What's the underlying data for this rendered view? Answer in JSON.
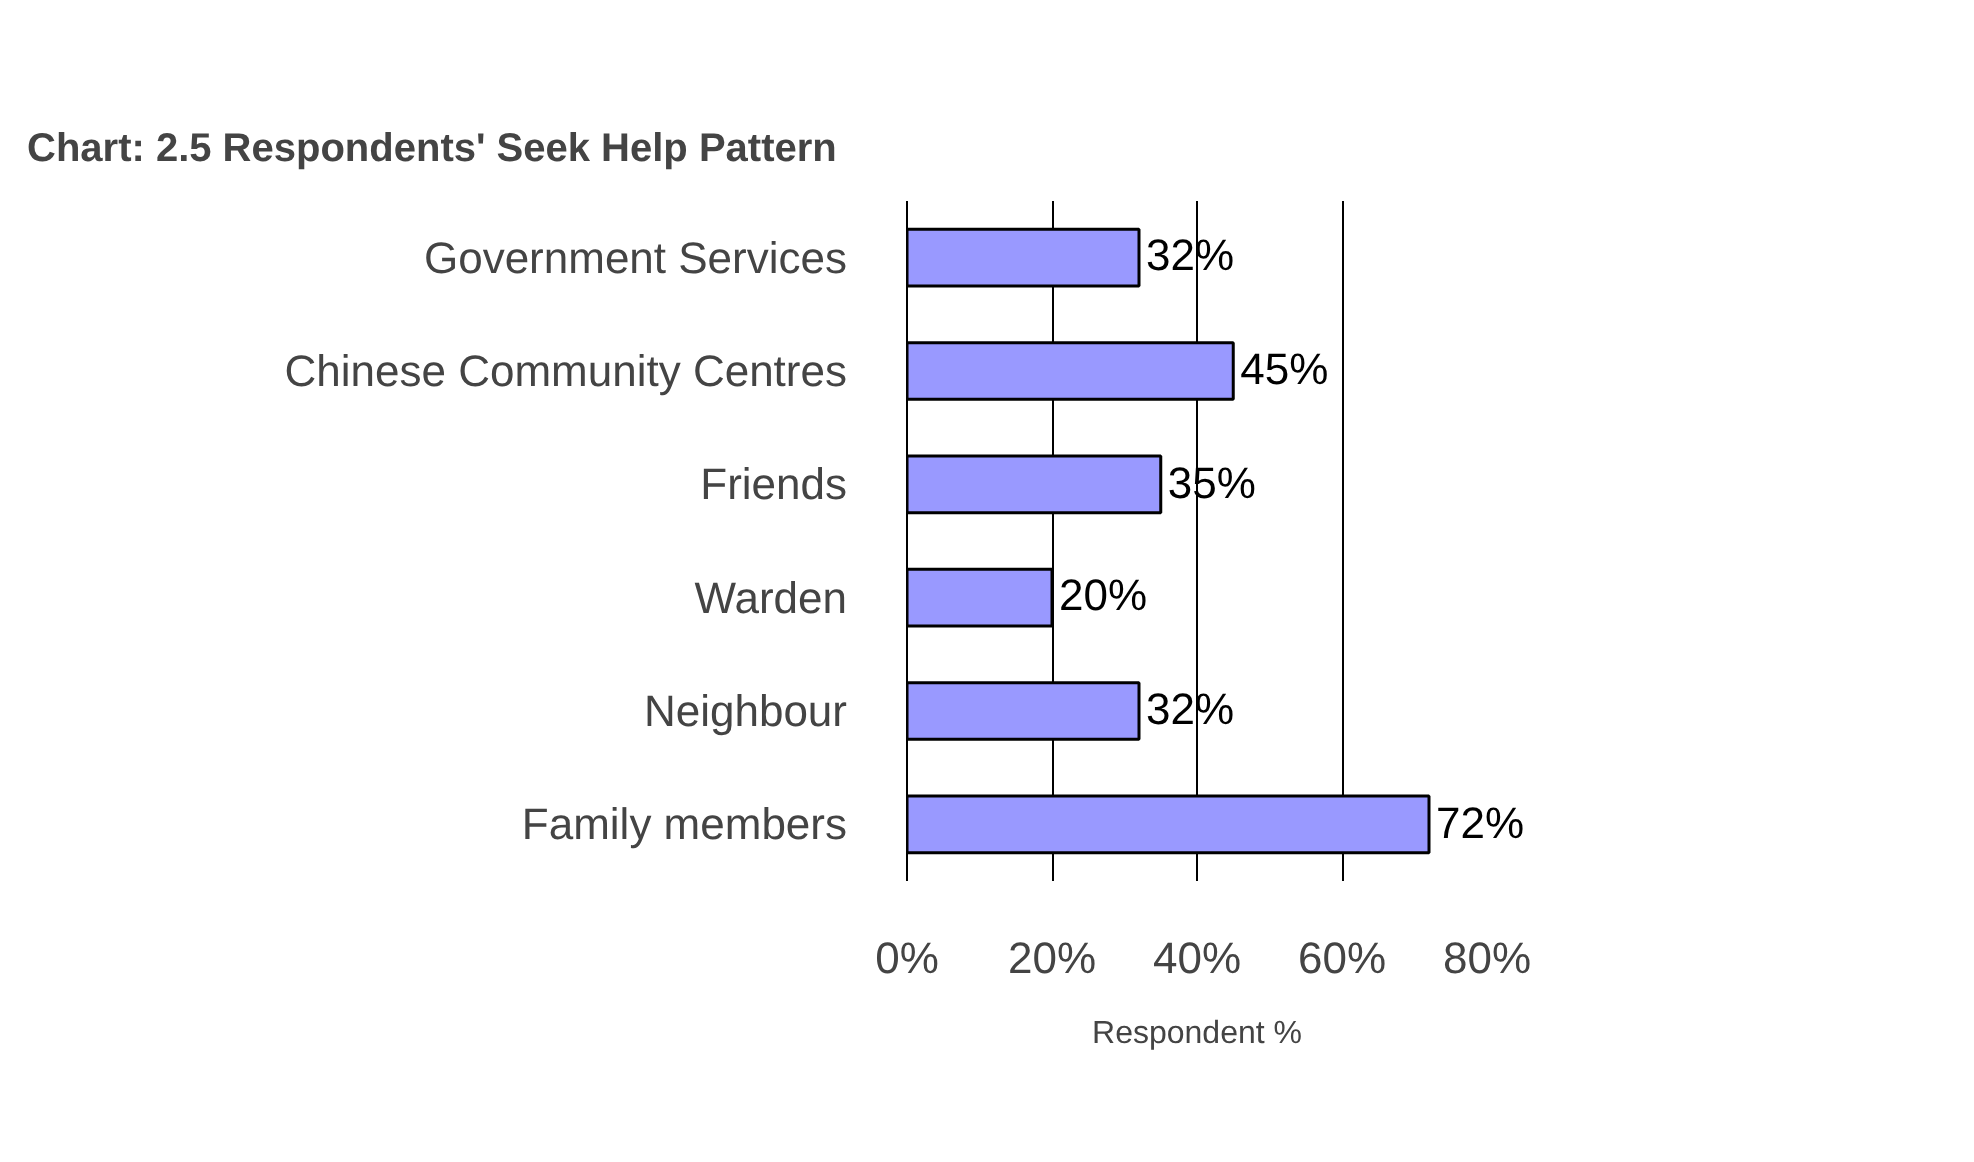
{
  "chart_data": {
    "type": "bar",
    "orientation": "horizontal",
    "title": "Chart: 2.5  Respondents' Seek Help Pattern",
    "xlabel": "Respondent %",
    "categories": [
      "Government Services",
      "Chinese Community Centres",
      "Friends",
      "Warden",
      "Neighbour",
      "Family members"
    ],
    "values": [
      32,
      45,
      35,
      20,
      32,
      72
    ],
    "value_labels": [
      "32%",
      "45%",
      "35%",
      "20%",
      "32%",
      "72%"
    ],
    "color": "#9999ff",
    "xlim": [
      0,
      80
    ],
    "xticks": [
      {
        "value": 0,
        "label": "0%"
      },
      {
        "value": 20,
        "label": "20%"
      },
      {
        "value": 40,
        "label": "40%"
      },
      {
        "value": 60,
        "label": "60%"
      },
      {
        "value": 80,
        "label": "80%"
      }
    ],
    "grid": "x"
  }
}
